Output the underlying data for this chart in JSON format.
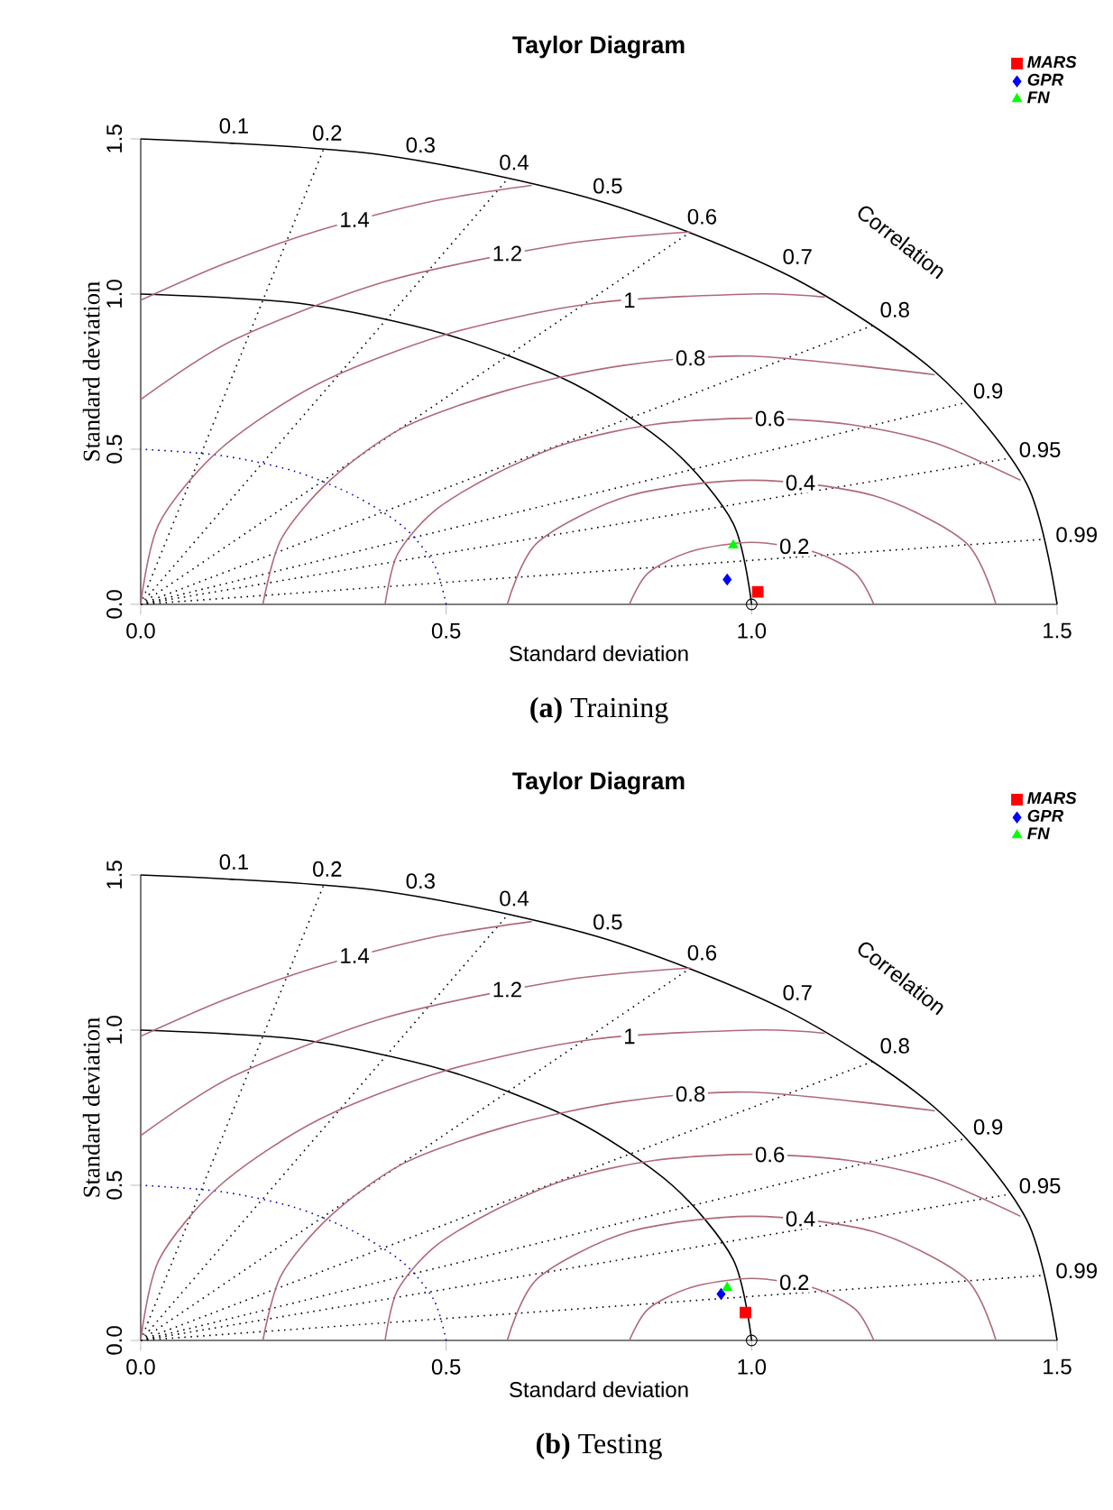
{
  "chart_data": [
    {
      "type": "scatter",
      "title": "Taylor Diagram",
      "xlabel": "Standard deviation",
      "ylabel": "Standard deviation",
      "xlim": [
        0,
        1.5
      ],
      "ylim": [
        0,
        1.5
      ],
      "xticks": [
        {
          "value": 0,
          "label": "0.0"
        },
        {
          "value": 0.5,
          "label": "0.5"
        },
        {
          "value": 1,
          "label": "1.0"
        },
        {
          "value": 1.5,
          "label": "1.5"
        }
      ],
      "yticks": [
        {
          "value": 0,
          "label": "0.0"
        },
        {
          "value": 0.5,
          "label": "0.5"
        },
        {
          "value": 1,
          "label": "1.0"
        },
        {
          "value": 1.5,
          "label": "1.5"
        }
      ],
      "legend": "top right",
      "series": [
        {
          "type": "line",
          "color": "#000000",
          "line_style": "dotted",
          "x": [
            0,
            0.3
          ],
          "values": [
            0,
            1.47
          ]
        },
        {
          "type": "line",
          "color": "#000000",
          "line_style": "dotted",
          "x": [
            0,
            0.6
          ],
          "values": [
            0,
            1.37
          ]
        },
        {
          "type": "line",
          "color": "#000000",
          "line_style": "dotted",
          "x": [
            0,
            0.9
          ],
          "values": [
            0,
            1.2
          ]
        },
        {
          "type": "line",
          "color": "#000000",
          "line_style": "dotted",
          "x": [
            0,
            1.2
          ],
          "values": [
            0,
            0.9
          ]
        },
        {
          "type": "line",
          "color": "#000000",
          "line_style": "dotted",
          "x": [
            0,
            1.35
          ],
          "values": [
            0,
            0.65
          ]
        },
        {
          "type": "line",
          "color": "#000000",
          "line_style": "dotted",
          "x": [
            0,
            1.42
          ],
          "values": [
            0,
            0.47
          ]
        },
        {
          "type": "line",
          "color": "#000000",
          "line_style": "dotted",
          "x": [
            0,
            1.48
          ],
          "values": [
            0,
            0.21
          ]
        },
        {
          "type": "line",
          "color": "#0000cc",
          "line_style": "dotted",
          "x": [
            0.5,
            0.48,
            0.43,
            0.35,
            0.25,
            0.13,
            0
          ],
          "values": [
            0,
            0.13,
            0.25,
            0.35,
            0.43,
            0.48,
            0.5
          ]
        },
        {
          "type": "line",
          "color": "#000000",
          "line_style": "solid",
          "x": [
            1,
            0.97,
            0.87,
            0.71,
            0.5,
            0.26,
            0
          ],
          "values": [
            0,
            0.26,
            0.5,
            0.71,
            0.87,
            0.97,
            1
          ]
        },
        {
          "type": "line",
          "color": "#000000",
          "line_style": "solid",
          "x": [
            1.5,
            1.45,
            1.3,
            1.06,
            0.75,
            0.39,
            0
          ],
          "values": [
            0,
            0.39,
            0.75,
            1.06,
            1.3,
            1.45,
            1.5
          ]
        },
        {
          "type": "line",
          "color": "#b06a78",
          "line_style": "solid",
          "x": [
            1.2,
            1.17,
            1.1,
            1,
            0.9,
            0.83,
            0.8
          ],
          "values": [
            0,
            0.1,
            0.17,
            0.2,
            0.17,
            0.1,
            0
          ]
        },
        {
          "type": "line",
          "color": "#b06a78",
          "line_style": "solid",
          "x": [
            1.4,
            1.35,
            1.2,
            1,
            0.8,
            0.65,
            0.6
          ],
          "values": [
            0,
            0.2,
            0.35,
            0.4,
            0.35,
            0.2,
            0
          ]
        },
        {
          "type": "line",
          "color": "#b06a78",
          "line_style": "solid",
          "x": [
            1.44,
            1.3,
            1.16,
            1,
            0.84,
            0.7,
            0.58,
            0.48,
            0.42,
            0.4
          ],
          "values": [
            0.4,
            0.52,
            0.58,
            0.6,
            0.58,
            0.52,
            0.42,
            0.3,
            0.16,
            0
          ]
        },
        {
          "type": "line",
          "color": "#b06a78",
          "line_style": "solid",
          "x": [
            1.3,
            1,
            0.79,
            0.6,
            0.43,
            0.31,
            0.23,
            0.2
          ],
          "values": [
            0.74,
            0.8,
            0.77,
            0.69,
            0.57,
            0.4,
            0.21,
            0
          ]
        },
        {
          "type": "line",
          "color": "#b06a78",
          "line_style": "solid",
          "x": [
            1.12,
            1,
            0.74,
            0.5,
            0.29,
            0.13,
            0.03,
            0
          ],
          "values": [
            0.99,
            1,
            0.97,
            0.87,
            0.71,
            0.5,
            0.26,
            0
          ]
        },
        {
          "type": "line",
          "color": "#b06a78",
          "line_style": "solid",
          "x": [
            0.9,
            0.69,
            0.4,
            0.15,
            0
          ],
          "values": [
            1.2,
            1.16,
            1.04,
            0.85,
            0.66
          ]
        },
        {
          "type": "line",
          "color": "#b06a78",
          "line_style": "solid",
          "x": [
            0.64,
            0.48,
            0.3,
            0.14,
            0
          ],
          "values": [
            1.35,
            1.3,
            1.21,
            1.1,
            0.98
          ]
        },
        {
          "marker": "circle",
          "color": "#000000",
          "x": [
            1
          ],
          "values": [
            0
          ]
        },
        {
          "name": "MARS",
          "marker": "square",
          "color": "#ff0000",
          "x": [
            1.01
          ],
          "values": [
            0.04
          ]
        },
        {
          "name": "GPR",
          "marker": "diamond",
          "color": "#0000ff",
          "x": [
            0.96
          ],
          "values": [
            0.08
          ]
        },
        {
          "name": "FN",
          "marker": "triangle",
          "color": "#00ff00",
          "x": [
            0.97
          ],
          "values": [
            0.19
          ]
        }
      ],
      "annotations": [
        "Correlation",
        "**(a)** Training",
        {
          "text": "0.1",
          "x": 0.15,
          "y": 1.4925
        },
        {
          "text": "0.2",
          "x": 0.3,
          "y": 1.4697
        },
        {
          "text": "0.3",
          "x": 0.45,
          "y": 1.4309
        },
        {
          "text": "0.4",
          "x": 0.6,
          "y": 1.3748
        },
        {
          "text": "0.5",
          "x": 0.75,
          "y": 1.299
        },
        {
          "text": "0.6",
          "x": 0.9,
          "y": 1.2
        },
        {
          "text": "0.7",
          "x": 1.05,
          "y": 1.0712
        },
        {
          "text": "0.8",
          "x": 1.2,
          "y": 0.9
        },
        {
          "text": "0.9",
          "x": 1.35,
          "y": 0.6538
        },
        {
          "text": "0.95",
          "x": 1.425,
          "y": 0.4684
        },
        {
          "text": "0.99",
          "x": 1.485,
          "y": 0.2116
        },
        {
          "text": "0.2",
          "x": 1.07,
          "y": 0.187
        },
        {
          "text": "0.4",
          "x": 1.08,
          "y": 0.392
        },
        {
          "text": "0.6",
          "x": 1.03,
          "y": 0.599
        },
        {
          "text": "0.8",
          "x": 0.9,
          "y": 0.794
        },
        {
          "text": "1",
          "x": 0.8,
          "y": 0.98
        },
        {
          "text": "1.2",
          "x": 0.6,
          "y": 1.131
        },
        {
          "text": "1.4",
          "x": 0.35,
          "y": 1.24
        }
      ]
    },
    {
      "type": "scatter",
      "title": "Taylor Diagram",
      "xlabel": "Standard deviation",
      "ylabel": "Standard deviation",
      "xlim": [
        0,
        1.5
      ],
      "ylim": [
        0,
        1.5
      ],
      "xticks": [
        {
          "value": 0,
          "label": "0.0"
        },
        {
          "value": 0.5,
          "label": "0.5"
        },
        {
          "value": 1,
          "label": "1.0"
        },
        {
          "value": 1.5,
          "label": "1.5"
        }
      ],
      "yticks": [
        {
          "value": 0,
          "label": "0.0"
        },
        {
          "value": 0.5,
          "label": "0.5"
        },
        {
          "value": 1,
          "label": "1.0"
        },
        {
          "value": 1.5,
          "label": "1.5"
        }
      ],
      "legend": "top right",
      "series": [
        {
          "type": "line",
          "color": "#000000",
          "line_style": "dotted",
          "x": [
            0,
            0.3
          ],
          "values": [
            0,
            1.47
          ]
        },
        {
          "type": "line",
          "color": "#000000",
          "line_style": "dotted",
          "x": [
            0,
            0.6
          ],
          "values": [
            0,
            1.37
          ]
        },
        {
          "type": "line",
          "color": "#000000",
          "line_style": "dotted",
          "x": [
            0,
            0.9
          ],
          "values": [
            0,
            1.2
          ]
        },
        {
          "type": "line",
          "color": "#000000",
          "line_style": "dotted",
          "x": [
            0,
            1.2
          ],
          "values": [
            0,
            0.9
          ]
        },
        {
          "type": "line",
          "color": "#000000",
          "line_style": "dotted",
          "x": [
            0,
            1.35
          ],
          "values": [
            0,
            0.65
          ]
        },
        {
          "type": "line",
          "color": "#000000",
          "line_style": "dotted",
          "x": [
            0,
            1.42
          ],
          "values": [
            0,
            0.47
          ]
        },
        {
          "type": "line",
          "color": "#000000",
          "line_style": "dotted",
          "x": [
            0,
            1.48
          ],
          "values": [
            0,
            0.21
          ]
        },
        {
          "type": "line",
          "color": "#0000cc",
          "line_style": "dotted",
          "x": [
            0.5,
            0.48,
            0.43,
            0.35,
            0.25,
            0.13,
            0
          ],
          "values": [
            0,
            0.13,
            0.25,
            0.35,
            0.43,
            0.48,
            0.5
          ]
        },
        {
          "type": "line",
          "color": "#000000",
          "line_style": "solid",
          "x": [
            1,
            0.97,
            0.87,
            0.71,
            0.5,
            0.26,
            0
          ],
          "values": [
            0,
            0.26,
            0.5,
            0.71,
            0.87,
            0.97,
            1
          ]
        },
        {
          "type": "line",
          "color": "#000000",
          "line_style": "solid",
          "x": [
            1.5,
            1.45,
            1.3,
            1.06,
            0.75,
            0.39,
            0
          ],
          "values": [
            0,
            0.39,
            0.75,
            1.06,
            1.3,
            1.45,
            1.5
          ]
        },
        {
          "type": "line",
          "color": "#b06a78",
          "line_style": "solid",
          "x": [
            1.2,
            1.17,
            1.1,
            1,
            0.9,
            0.83,
            0.8
          ],
          "values": [
            0,
            0.1,
            0.17,
            0.2,
            0.17,
            0.1,
            0
          ]
        },
        {
          "type": "line",
          "color": "#b06a78",
          "line_style": "solid",
          "x": [
            1.4,
            1.35,
            1.2,
            1,
            0.8,
            0.65,
            0.6
          ],
          "values": [
            0,
            0.2,
            0.35,
            0.4,
            0.35,
            0.2,
            0
          ]
        },
        {
          "type": "line",
          "color": "#b06a78",
          "line_style": "solid",
          "x": [
            1.44,
            1.3,
            1.16,
            1,
            0.84,
            0.7,
            0.58,
            0.48,
            0.42,
            0.4
          ],
          "values": [
            0.4,
            0.52,
            0.58,
            0.6,
            0.58,
            0.52,
            0.42,
            0.3,
            0.16,
            0
          ]
        },
        {
          "type": "line",
          "color": "#b06a78",
          "line_style": "solid",
          "x": [
            1.3,
            1,
            0.79,
            0.6,
            0.43,
            0.31,
            0.23,
            0.2
          ],
          "values": [
            0.74,
            0.8,
            0.77,
            0.69,
            0.57,
            0.4,
            0.21,
            0
          ]
        },
        {
          "type": "line",
          "color": "#b06a78",
          "line_style": "solid",
          "x": [
            1.12,
            1,
            0.74,
            0.5,
            0.29,
            0.13,
            0.03,
            0
          ],
          "values": [
            0.99,
            1,
            0.97,
            0.87,
            0.71,
            0.5,
            0.26,
            0
          ]
        },
        {
          "type": "line",
          "color": "#b06a78",
          "line_style": "solid",
          "x": [
            0.9,
            0.69,
            0.4,
            0.15,
            0
          ],
          "values": [
            1.2,
            1.16,
            1.04,
            0.85,
            0.66
          ]
        },
        {
          "type": "line",
          "color": "#b06a78",
          "line_style": "solid",
          "x": [
            0.64,
            0.48,
            0.3,
            0.14,
            0
          ],
          "values": [
            1.35,
            1.3,
            1.21,
            1.1,
            0.98
          ]
        },
        {
          "marker": "circle",
          "color": "#000000",
          "x": [
            1
          ],
          "values": [
            0
          ]
        },
        {
          "name": "MARS",
          "marker": "square",
          "color": "#ff0000",
          "x": [
            0.99
          ],
          "values": [
            0.09
          ]
        },
        {
          "name": "GPR",
          "marker": "diamond",
          "color": "#0000ff",
          "x": [
            0.95
          ],
          "values": [
            0.15
          ]
        },
        {
          "name": "FN",
          "marker": "triangle",
          "color": "#00ff00",
          "x": [
            0.96
          ],
          "values": [
            0.17
          ]
        }
      ],
      "annotations": [
        "Correlation",
        "**(b)** Testing",
        {
          "text": "0.1",
          "x": 0.15,
          "y": 1.4925
        },
        {
          "text": "0.2",
          "x": 0.3,
          "y": 1.4697
        },
        {
          "text": "0.3",
          "x": 0.45,
          "y": 1.4309
        },
        {
          "text": "0.4",
          "x": 0.6,
          "y": 1.3748
        },
        {
          "text": "0.5",
          "x": 0.75,
          "y": 1.299
        },
        {
          "text": "0.6",
          "x": 0.9,
          "y": 1.2
        },
        {
          "text": "0.7",
          "x": 1.05,
          "y": 1.0712
        },
        {
          "text": "0.8",
          "x": 1.2,
          "y": 0.9
        },
        {
          "text": "0.9",
          "x": 1.35,
          "y": 0.6538
        },
        {
          "text": "0.95",
          "x": 1.425,
          "y": 0.4684
        },
        {
          "text": "0.99",
          "x": 1.485,
          "y": 0.2116
        },
        {
          "text": "0.2",
          "x": 1.07,
          "y": 0.187
        },
        {
          "text": "0.4",
          "x": 1.08,
          "y": 0.392
        },
        {
          "text": "0.6",
          "x": 1.03,
          "y": 0.599
        },
        {
          "text": "0.8",
          "x": 0.9,
          "y": 0.794
        },
        {
          "text": "1",
          "x": 0.8,
          "y": 0.98
        },
        {
          "text": "1.2",
          "x": 0.6,
          "y": 1.131
        },
        {
          "text": "1.4",
          "x": 0.35,
          "y": 1.24
        }
      ]
    }
  ]
}
